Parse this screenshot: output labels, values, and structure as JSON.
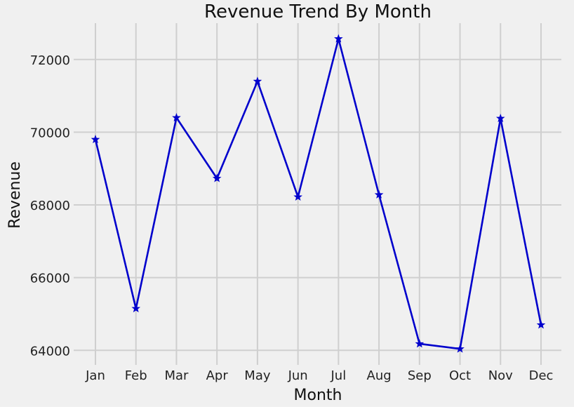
{
  "chart_data": {
    "type": "line",
    "title": "Revenue Trend By Month",
    "xlabel": "Month",
    "ylabel": "Revenue",
    "categories": [
      "Jan",
      "Feb",
      "Mar",
      "Apr",
      "May",
      "Jun",
      "Jul",
      "Aug",
      "Sep",
      "Oct",
      "Nov",
      "Dec"
    ],
    "series": [
      {
        "values": [
          69800,
          65150,
          70400,
          68730,
          71400,
          68220,
          72570,
          68280,
          64180,
          64040,
          70380,
          64700
        ],
        "color": "#0000cc",
        "marker": "star-icon"
      }
    ],
    "ylim": [
      63600,
      73000
    ],
    "yticks": [
      64000,
      66000,
      68000,
      70000,
      72000
    ],
    "grid": true,
    "legend": "none",
    "background_color": "#f0f0f0"
  }
}
